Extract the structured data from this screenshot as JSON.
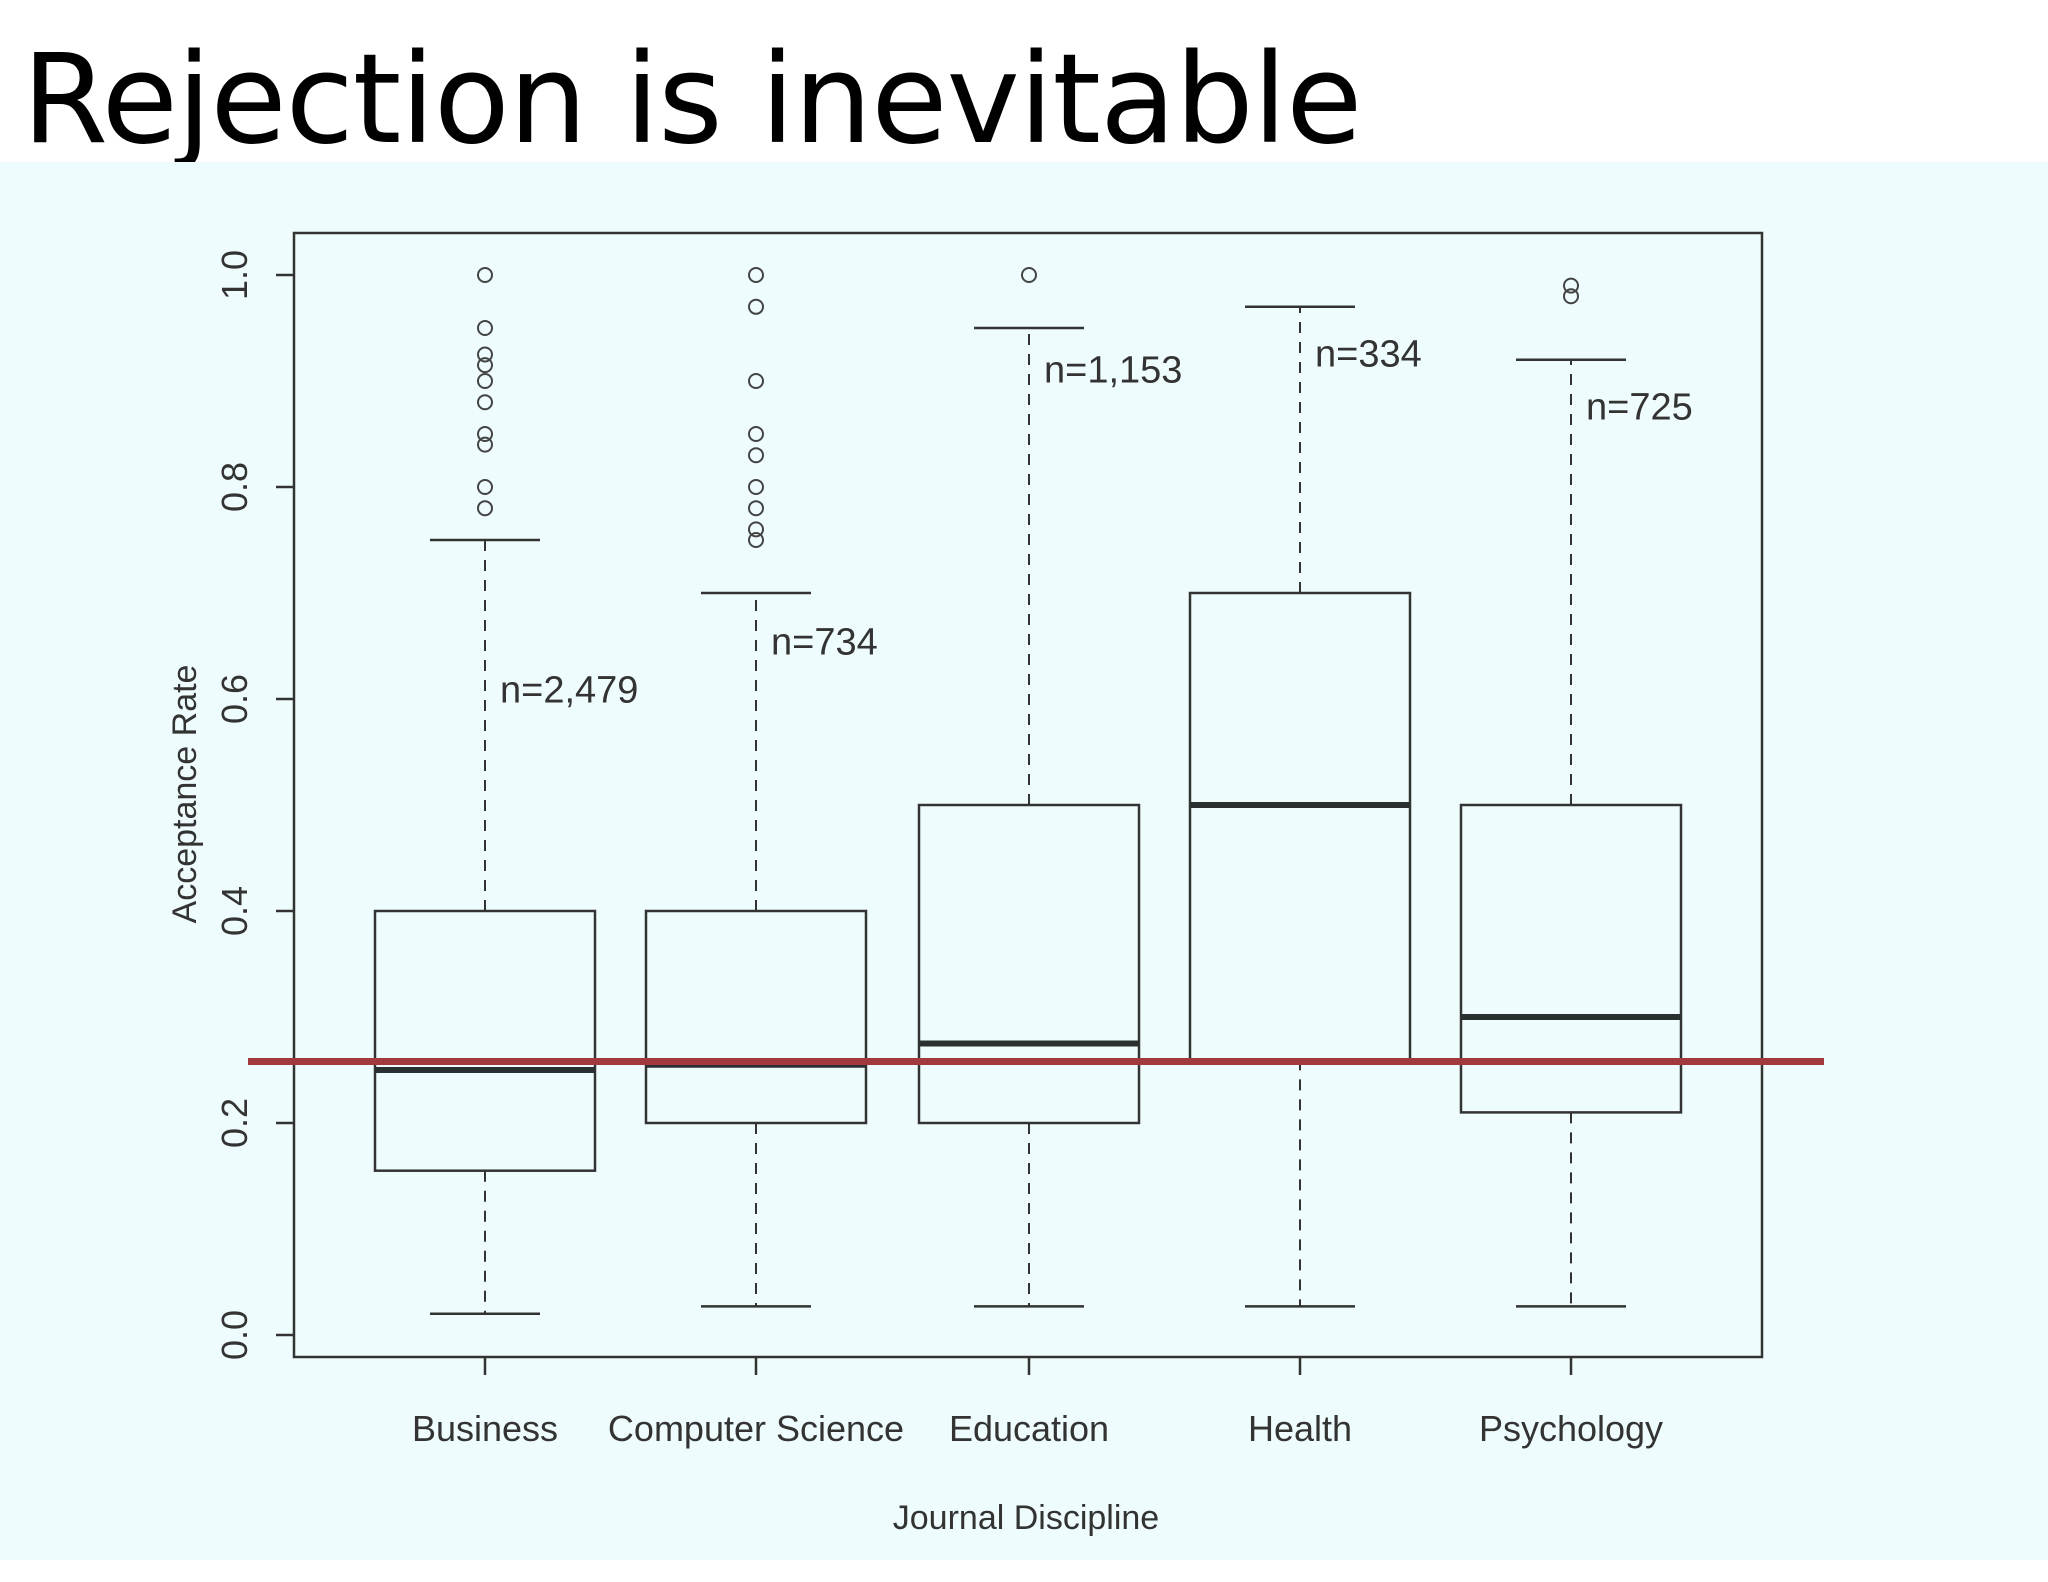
{
  "title": "Rejection is inevitable",
  "chart_data": {
    "type": "box",
    "xlabel": "Journal Discipline",
    "ylabel": "Acceptance Rate",
    "ylim": [
      0.0,
      1.0
    ],
    "yticks": [
      "0.0",
      "0.2",
      "0.4",
      "0.6",
      "0.8",
      "1.0"
    ],
    "grid": false,
    "colors": {
      "box_stroke": "#333333",
      "median": "#2a2f2f",
      "reference_line": "#a2393f",
      "panel_bg": "#eefcfd"
    },
    "reference_line": {
      "y": 0.258
    },
    "categories": [
      "Business",
      "Computer Science",
      "Education",
      "Health",
      "Psychology"
    ],
    "boxes": [
      {
        "category": "Business",
        "min": 0.02,
        "q1": 0.155,
        "median": 0.25,
        "q3": 0.4,
        "max": 0.75,
        "n_label": "n=2,479",
        "n_label_y": 0.61,
        "outliers": [
          0.78,
          0.8,
          0.84,
          0.85,
          0.88,
          0.9,
          0.915,
          0.925,
          0.95,
          1.0
        ]
      },
      {
        "category": "Computer Science",
        "min": 0.027,
        "q1": 0.2,
        "median": 0.255,
        "q3": 0.4,
        "max": 0.7,
        "n_label": "n=734",
        "n_label_y": 0.655,
        "outliers": [
          0.75,
          0.76,
          0.78,
          0.8,
          0.83,
          0.85,
          0.9,
          0.97,
          1.0
        ]
      },
      {
        "category": "Education",
        "min": 0.027,
        "q1": 0.2,
        "median": 0.275,
        "q3": 0.5,
        "max": 0.95,
        "n_label": "n=1,153",
        "n_label_y": 0.912,
        "outliers": [
          1.0
        ]
      },
      {
        "category": "Health",
        "min": 0.027,
        "q1": 0.26,
        "median": 0.5,
        "q3": 0.7,
        "max": 0.97,
        "n_label": "n=334",
        "n_label_y": 0.927,
        "outliers": []
      },
      {
        "category": "Psychology",
        "min": 0.027,
        "q1": 0.21,
        "median": 0.3,
        "q3": 0.5,
        "max": 0.92,
        "n_label": "n=725",
        "n_label_y": 0.877,
        "outliers": [
          0.98,
          0.99
        ]
      }
    ]
  }
}
